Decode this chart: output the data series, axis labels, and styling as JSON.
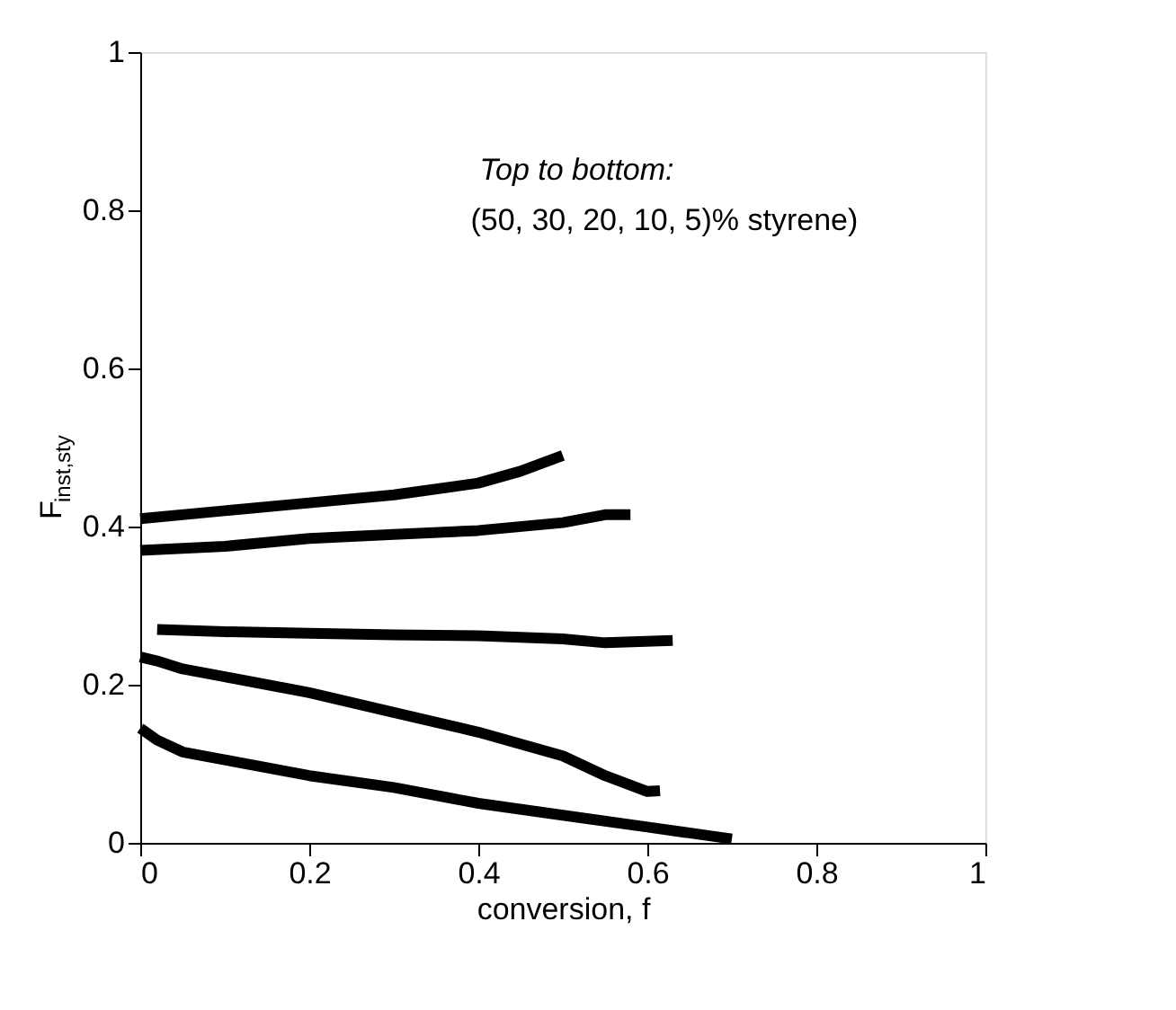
{
  "chart_data": {
    "type": "line",
    "xlabel": "conversion, f",
    "ylabel": "F$_{inst,sty}$",
    "annotations": [
      "Top to bottom:",
      "(50, 30, 20, 10, 5)% styrene)"
    ],
    "xlim": [
      0,
      1
    ],
    "ylim": [
      0,
      1
    ],
    "xticks": [
      0,
      0.2,
      0.4,
      0.6,
      0.8,
      1
    ],
    "yticks": [
      0,
      0.2,
      0.4,
      0.6,
      0.8,
      1
    ],
    "grid": false,
    "marker": "none",
    "line_style": "solid",
    "series": [
      {
        "color": "#000000",
        "x": [
          0,
          0.1,
          0.2,
          0.3,
          0.4,
          0.45,
          0.5
        ],
        "values": [
          0.41,
          0.42,
          0.43,
          0.44,
          0.455,
          0.47,
          0.49
        ]
      },
      {
        "color": "#000000",
        "x": [
          0,
          0.1,
          0.2,
          0.3,
          0.4,
          0.5,
          0.55,
          0.58
        ],
        "values": [
          0.37,
          0.375,
          0.385,
          0.39,
          0.395,
          0.405,
          0.415,
          0.415
        ]
      },
      {
        "color": "#000000",
        "x": [
          0.02,
          0.1,
          0.2,
          0.3,
          0.4,
          0.5,
          0.55,
          0.63
        ],
        "values": [
          0.27,
          0.267,
          0.265,
          0.263,
          0.262,
          0.258,
          0.253,
          0.256
        ]
      },
      {
        "color": "#000000",
        "x": [
          0,
          0.02,
          0.05,
          0.1,
          0.2,
          0.3,
          0.4,
          0.5,
          0.55,
          0.6,
          0.615
        ],
        "values": [
          0.235,
          0.23,
          0.22,
          0.21,
          0.19,
          0.165,
          0.14,
          0.11,
          0.085,
          0.065,
          0.066
        ]
      },
      {
        "color": "#000000",
        "x": [
          0,
          0.02,
          0.05,
          0.1,
          0.2,
          0.3,
          0.4,
          0.5,
          0.6,
          0.7
        ],
        "values": [
          0.145,
          0.13,
          0.115,
          0.105,
          0.085,
          0.07,
          0.05,
          0.035,
          0.02,
          0.005
        ]
      }
    ]
  }
}
